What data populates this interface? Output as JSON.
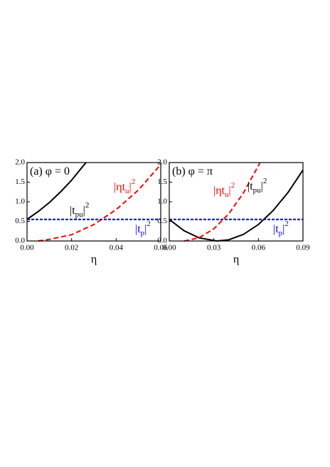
{
  "chart_data": [
    {
      "type": "line",
      "xlabel": "η",
      "xlim": [
        0,
        0.06
      ],
      "ylim": [
        0,
        2.0
      ],
      "xticks": [
        {
          "value": 0,
          "label": "0.00"
        },
        {
          "value": 0.02,
          "label": "0.02"
        },
        {
          "value": 0.04,
          "label": "0.04"
        },
        {
          "value": 0.06,
          "label": "0.06"
        }
      ],
      "yticks": [
        {
          "value": 0,
          "label": "0.0"
        },
        {
          "value": 0.5,
          "label": "0.5"
        },
        {
          "value": 1.0,
          "label": "1.0"
        },
        {
          "value": 1.5,
          "label": "1.5"
        },
        {
          "value": 2.0,
          "label": "2.0"
        }
      ],
      "grid": false,
      "series": [
        {
          "color": "#000000",
          "style": "solid",
          "x": [
            0,
            0.005,
            0.01,
            0.015,
            0.02,
            0.025,
            0.0265
          ],
          "values": [
            0.55,
            0.75,
            0.98,
            1.25,
            1.55,
            1.9,
            2.0
          ]
        },
        {
          "color": "#ff0000",
          "style": "dashed",
          "x": [
            0.005,
            0.01,
            0.02,
            0.03,
            0.04,
            0.05,
            0.06
          ],
          "values": [
            0,
            0.04,
            0.16,
            0.42,
            0.8,
            1.3,
            1.95
          ]
        },
        {
          "color": "#0000ff",
          "style": "dotted",
          "x": [
            0,
            0.06
          ],
          "values": [
            0.55,
            0.55
          ]
        }
      ],
      "annotations": [
        {
          "text": "(a) φ = 0",
          "color": "#000000"
        },
        {
          "text": "|t",
          "sub": "pu",
          "after": "|",
          "sup": "2",
          "color": "#000000"
        },
        {
          "text": "|ηt",
          "sub": "u",
          "after": "|",
          "sup": "2",
          "color": "#ff0000"
        },
        {
          "text": "|t",
          "sub": "p",
          "after": "|",
          "sup": "2",
          "color": "#0000ff"
        }
      ]
    },
    {
      "type": "line",
      "xlabel": "η",
      "xlim": [
        0,
        0.09
      ],
      "ylim": [
        0,
        2.0
      ],
      "xticks": [
        {
          "value": 0,
          "label": "0.00"
        },
        {
          "value": 0.03,
          "label": "0.03"
        },
        {
          "value": 0.06,
          "label": "0.06"
        },
        {
          "value": 0.09,
          "label": "0.09"
        }
      ],
      "yticks": [
        {
          "value": 0,
          "label": "0.0"
        },
        {
          "value": 0.5,
          "label": "0.5"
        },
        {
          "value": 1.0,
          "label": "1.0"
        },
        {
          "value": 1.5,
          "label": "1.5"
        },
        {
          "value": 2.0,
          "label": "2.0"
        }
      ],
      "grid": false,
      "series": [
        {
          "color": "#000000",
          "style": "solid",
          "x": [
            0,
            0.01,
            0.02,
            0.032,
            0.04,
            0.05,
            0.06,
            0.07,
            0.08,
            0.09
          ],
          "values": [
            0.55,
            0.26,
            0.08,
            0,
            0.03,
            0.17,
            0.42,
            0.78,
            1.24,
            1.81
          ]
        },
        {
          "color": "#ff0000",
          "style": "dashed",
          "x": [
            0.01,
            0.02,
            0.03,
            0.04,
            0.05,
            0.06,
            0.061
          ],
          "values": [
            0,
            0.08,
            0.31,
            0.69,
            1.23,
            1.92,
            2.0
          ]
        },
        {
          "color": "#0000ff",
          "style": "dotted",
          "x": [
            0,
            0.09
          ],
          "values": [
            0.55,
            0.55
          ]
        }
      ],
      "annotations": [
        {
          "text": "(b) φ = π",
          "color": "#000000"
        },
        {
          "text": "|t",
          "sub": "pu",
          "after": "|",
          "sup": "2",
          "color": "#000000"
        },
        {
          "text": "|ηt",
          "sub": "u",
          "after": "|",
          "sup": "2",
          "color": "#ff0000"
        },
        {
          "text": "|t",
          "sub": "p",
          "after": "|",
          "sup": "2",
          "color": "#0000ff"
        }
      ]
    }
  ]
}
